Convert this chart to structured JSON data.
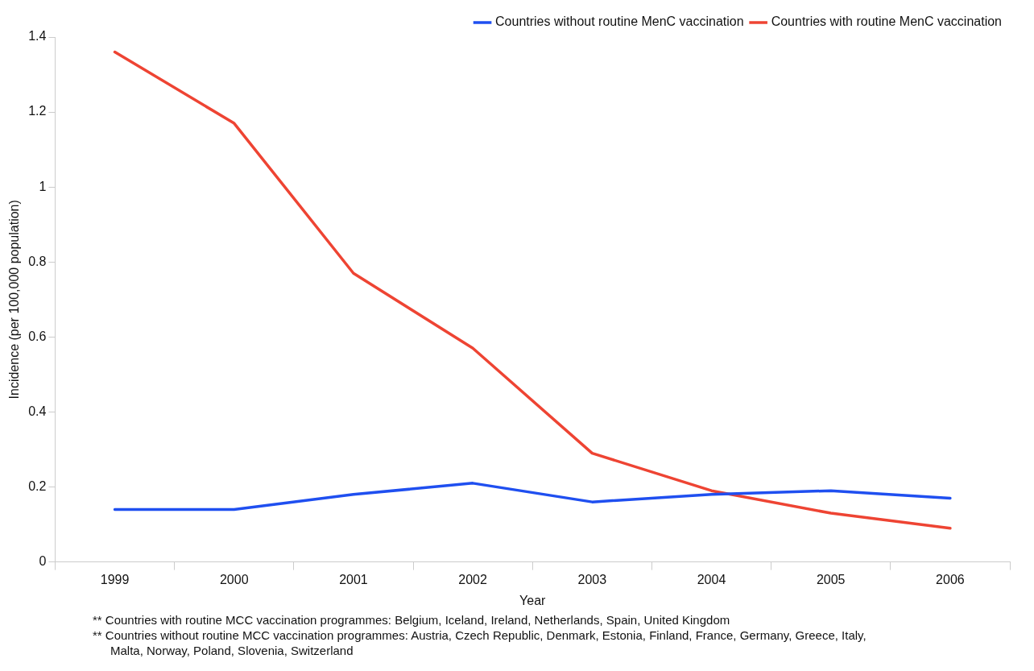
{
  "chart_data": {
    "type": "line",
    "xlabel": "Year",
    "ylabel": "Incidence (per 100,000 population)",
    "categories": [
      "1999",
      "2000",
      "2001",
      "2002",
      "2003",
      "2004",
      "2005",
      "2006"
    ],
    "series": [
      {
        "name": "Countries without routine MenC vaccination",
        "color": "#1f4ff0",
        "values": [
          0.14,
          0.14,
          0.18,
          0.21,
          0.16,
          0.18,
          0.19,
          0.17
        ]
      },
      {
        "name": "Countries with routine MenC vaccination",
        "color": "#ee4433",
        "values": [
          1.36,
          1.17,
          0.77,
          0.57,
          0.29,
          0.19,
          0.13,
          0.09
        ]
      }
    ],
    "ylim": [
      0,
      1.4
    ],
    "yticks": [
      0,
      0.2,
      0.4,
      0.6,
      0.8,
      1,
      1.2,
      1.4
    ],
    "grid": false,
    "legend": "top right",
    "marker": "none",
    "line_style": "solid",
    "annotations": [
      "** Countries with routine MCC vaccination programmes: Belgium, Iceland, Ireland, Netherlands, Spain, United Kingdom",
      "** Countries without routine MCC vaccination programmes: Austria, Czech Republic, Denmark, Estonia, Finland, France, Germany, Greece, Italy, Malta, Norway, Poland, Slovenia, Switzerland"
    ]
  }
}
